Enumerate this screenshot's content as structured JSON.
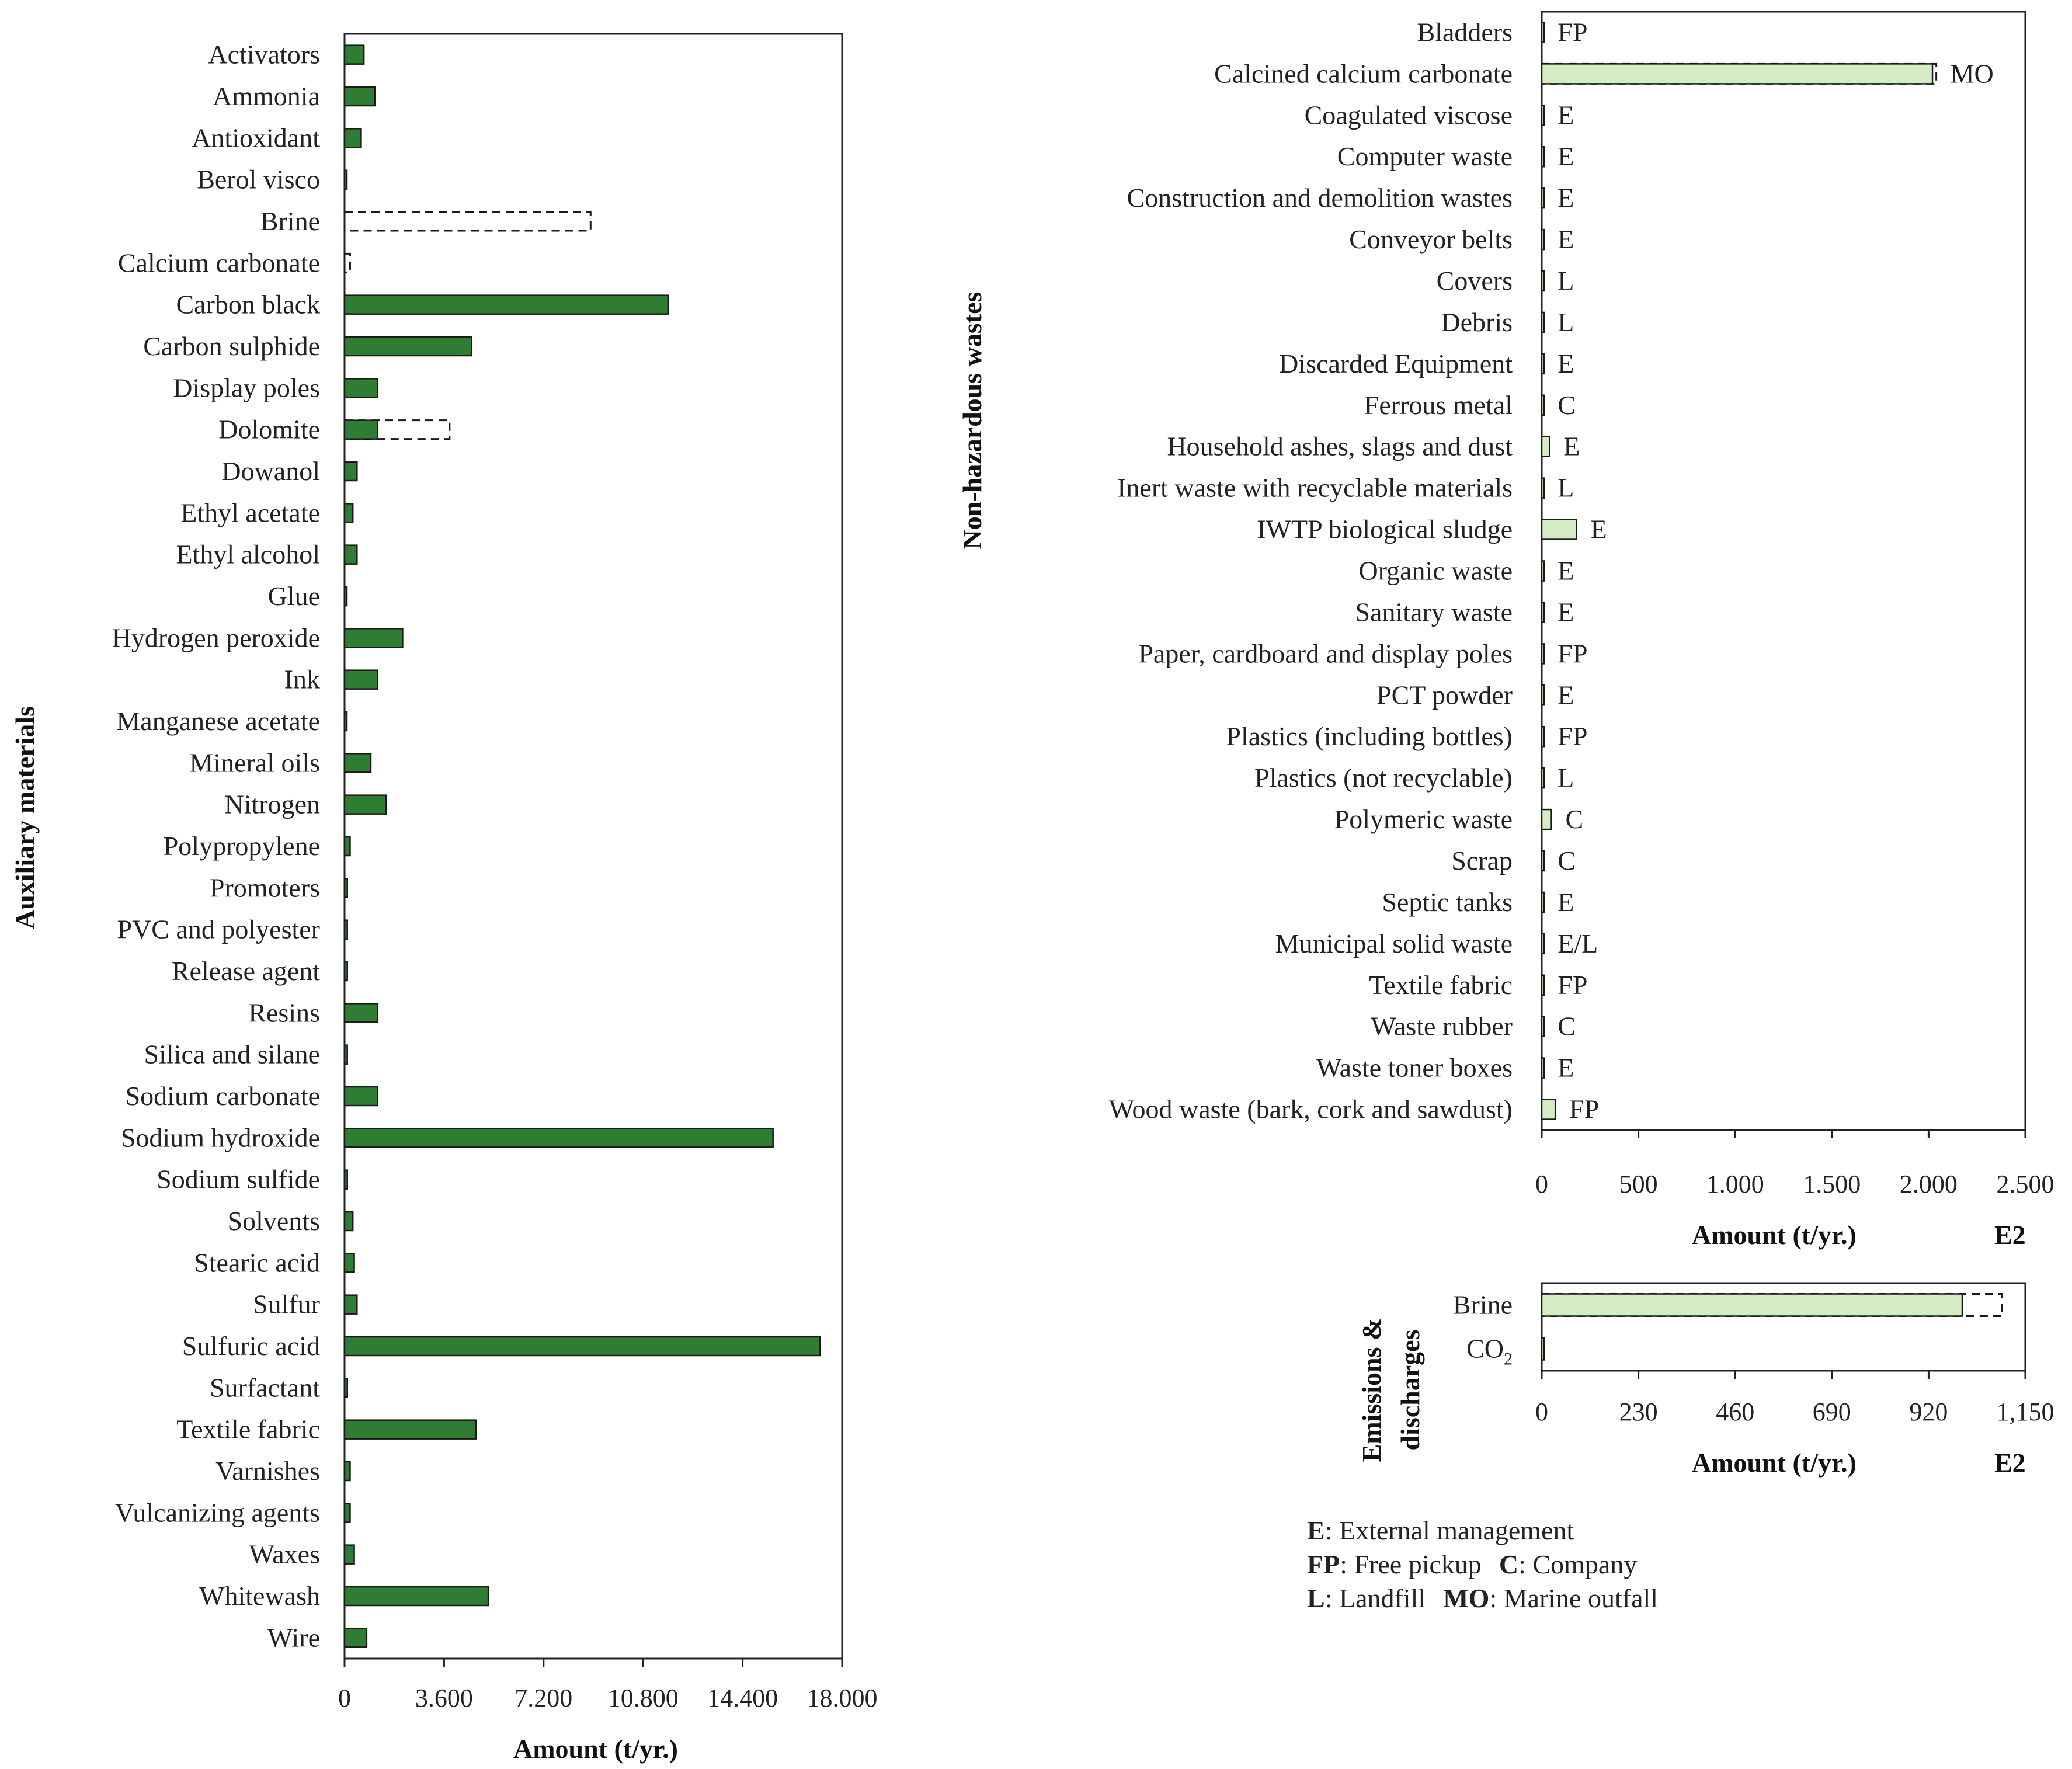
{
  "colors": {
    "dark_bar": "#2e7d32",
    "light_bar": "#d4ecc4",
    "bar_stroke": "#1a1a1a"
  },
  "chart_data": [
    {
      "id": "auxiliary",
      "type": "bar",
      "orientation": "horizontal",
      "ylabel": "Auxiliary materials",
      "xlabel": "Amount (t/yr.)",
      "xlim": [
        0,
        18000
      ],
      "xticks": [
        0,
        3600,
        7200,
        10800,
        14400,
        18000
      ],
      "xtick_labels": [
        "0",
        "3.600",
        "7.200",
        "10.800",
        "14.400",
        "18.000"
      ],
      "categories": [
        "Activators",
        "Ammonia",
        "Antioxidant",
        "Berol visco",
        "Brine",
        "Calcium carbonate",
        "Carbon black",
        "Carbon sulphide",
        "Display poles",
        "Dolomite",
        "Dowanol",
        "Ethyl acetate",
        "Ethyl alcohol",
        "Glue",
        "Hydrogen peroxide",
        "Ink",
        "Manganese acetate",
        "Mineral oils",
        "Nitrogen",
        "Polypropylene",
        "Promoters",
        "PVC and polyester",
        "Release agent",
        "Resins",
        "Silica and silane",
        "Sodium carbonate",
        "Sodium hydroxide",
        "Sodium sulfide",
        "Solvents",
        "Stearic acid",
        "Sulfur",
        "Sulfuric acid",
        "Surfactant",
        "Textile fabric",
        "Varnishes",
        "Vulcanizing agents",
        "Waxes",
        "Whitewash",
        "Wire"
      ],
      "values": [
        700,
        1100,
        600,
        50,
        0,
        0,
        11700,
        4600,
        1200,
        1200,
        450,
        300,
        450,
        80,
        2100,
        1200,
        80,
        950,
        1500,
        200,
        100,
        100,
        100,
        1200,
        100,
        1200,
        15500,
        100,
        300,
        350,
        450,
        17200,
        100,
        4750,
        200,
        200,
        350,
        5200,
        800
      ],
      "dashed_values": [
        0,
        0,
        0,
        0,
        8900,
        200,
        0,
        0,
        0,
        3800,
        0,
        0,
        0,
        0,
        0,
        0,
        0,
        0,
        0,
        0,
        0,
        0,
        0,
        0,
        0,
        0,
        0,
        0,
        0,
        0,
        0,
        0,
        0,
        0,
        0,
        0,
        0,
        0,
        0
      ]
    },
    {
      "id": "nonhazardous",
      "type": "bar",
      "orientation": "horizontal",
      "ylabel": "Non-hazardous wastes",
      "xlabel": "Amount (t/yr.)",
      "scenario": "E2",
      "xlim": [
        0,
        2500
      ],
      "xticks": [
        0,
        500,
        1000,
        1500,
        2000,
        2500
      ],
      "xtick_labels": [
        "0",
        "500",
        "1.000",
        "1.500",
        "2.000",
        "2.500"
      ],
      "categories": [
        "Bladders",
        "Calcined calcium carbonate",
        "Coagulated viscose",
        "Computer waste",
        "Construction and demolition wastes",
        "Conveyor belts",
        "Covers",
        "Debris",
        "Discarded Equipment",
        "Ferrous metal",
        "Household ashes, slags and dust",
        "Inert waste with recyclable materials",
        "IWTP biological sludge",
        "Organic waste",
        "Sanitary waste",
        "Paper, cardboard and display poles",
        "PCT powder",
        "Plastics (including bottles)",
        "Plastics (not recyclable)",
        "Polymeric waste",
        "Scrap",
        "Septic tanks",
        "Municipal solid waste",
        "Textile fabric",
        "Waste rubber",
        "Waste toner boxes",
        "Wood waste (bark, cork and sawdust)"
      ],
      "values": [
        10,
        2020,
        10,
        10,
        10,
        10,
        10,
        10,
        10,
        10,
        40,
        10,
        180,
        10,
        10,
        10,
        10,
        10,
        10,
        50,
        10,
        10,
        10,
        10,
        10,
        10,
        70
      ],
      "dashed_values": [
        0,
        2040,
        0,
        0,
        0,
        0,
        0,
        0,
        0,
        0,
        0,
        0,
        0,
        0,
        0,
        0,
        0,
        0,
        0,
        0,
        0,
        0,
        0,
        0,
        0,
        0,
        0
      ],
      "destinations": [
        "FP",
        "MO",
        "E",
        "E",
        "E",
        "E",
        "L",
        "L",
        "E",
        "C",
        "E",
        "L",
        "E",
        "E",
        "E",
        "FP",
        "E",
        "FP",
        "L",
        "C",
        "C",
        "E",
        "E/L",
        "FP",
        "C",
        "E",
        "FP"
      ]
    },
    {
      "id": "emissions",
      "type": "bar",
      "orientation": "horizontal",
      "ylabel": "Emissions & discharges",
      "xlabel": "Amount (t/yr.)",
      "scenario": "E2",
      "xlim": [
        0,
        1150
      ],
      "xticks": [
        0,
        230,
        460,
        690,
        920,
        1150
      ],
      "xtick_labels": [
        "0",
        "230",
        "460",
        "690",
        "920",
        "1,150"
      ],
      "categories": [
        "Brine",
        "CO2"
      ],
      "category_labels": [
        {
          "text": "Brine",
          "sub": ""
        },
        {
          "text": "CO",
          "sub": "2"
        }
      ],
      "values": [
        1000,
        5
      ],
      "dashed_values": [
        1095,
        0
      ]
    }
  ],
  "legend": [
    {
      "key": "E",
      "text": ": External management"
    },
    {
      "key": "FP",
      "text": ": Free pickup"
    },
    {
      "key": "C",
      "text": ": Company"
    },
    {
      "key": "L",
      "text": ": Landfill"
    },
    {
      "key": "MO",
      "text": ": Marine outfall"
    }
  ]
}
